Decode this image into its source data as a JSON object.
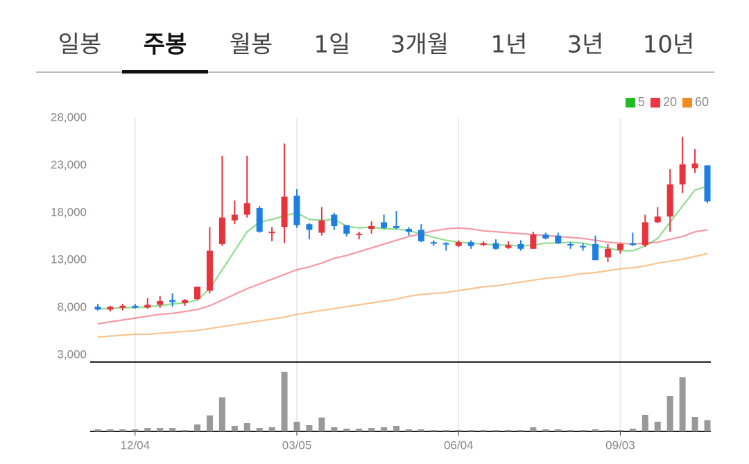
{
  "tabs": {
    "items": [
      "일봉",
      "주봉",
      "월봉",
      "1일",
      "3개월",
      "1년",
      "3년",
      "10년"
    ],
    "selected": 1
  },
  "chart_data": {
    "type": "candlestick",
    "categories": [
      null,
      null,
      null,
      "12/04",
      null,
      null,
      null,
      null,
      null,
      null,
      null,
      null,
      null,
      null,
      null,
      null,
      "03/05",
      null,
      null,
      null,
      null,
      null,
      null,
      null,
      null,
      null,
      null,
      null,
      null,
      "06/04",
      null,
      null,
      null,
      null,
      null,
      null,
      null,
      null,
      null,
      null,
      null,
      null,
      "09/03",
      null,
      null,
      null,
      null,
      null,
      null,
      null
    ],
    "open": [
      8100,
      7800,
      8000,
      8200,
      8000,
      8300,
      8800,
      8500,
      8900,
      9800,
      14700,
      17200,
      17800,
      18500,
      15900,
      16500,
      19800,
      16800,
      15900,
      17800,
      16700,
      15800,
      16300,
      17000,
      16600,
      16300,
      16200,
      14900,
      14800,
      14500,
      14900,
      14600,
      14800,
      14300,
      14700,
      14200,
      15700,
      15600,
      14700,
      14500,
      14700,
      13300,
      14100,
      14800,
      14600,
      17000,
      17600,
      21000,
      22700,
      23000
    ],
    "high": [
      8400,
      8200,
      8400,
      8400,
      9000,
      9200,
      9500,
      8900,
      10200,
      16500,
      24000,
      19300,
      24000,
      18700,
      16500,
      25300,
      20500,
      16900,
      18600,
      18000,
      16700,
      16000,
      17100,
      17800,
      18200,
      16500,
      16800,
      15100,
      14900,
      15100,
      15100,
      15000,
      15200,
      15000,
      15100,
      16000,
      15900,
      15900,
      14900,
      14800,
      15600,
      14700,
      14800,
      15900,
      17800,
      18600,
      22600,
      26000,
      24700,
      23000
    ],
    "low": [
      7700,
      7600,
      7700,
      7900,
      7900,
      8000,
      8100,
      8200,
      8800,
      9500,
      14500,
      16800,
      17500,
      15900,
      15000,
      14800,
      16400,
      15200,
      15600,
      16200,
      15500,
      15200,
      15800,
      16300,
      16300,
      15600,
      14900,
      14500,
      14000,
      14400,
      14200,
      14500,
      14100,
      14200,
      14000,
      14200,
      15200,
      14700,
      14200,
      14000,
      13000,
      12800,
      13700,
      14500,
      14400,
      16900,
      16000,
      20100,
      22200,
      19000
    ],
    "close": [
      7800,
      8100,
      8200,
      8000,
      8300,
      8700,
      8600,
      8800,
      10200,
      14000,
      17500,
      17800,
      19000,
      16000,
      16000,
      19700,
      16700,
      16200,
      17200,
      16600,
      15800,
      15800,
      16600,
      16400,
      16400,
      16000,
      15000,
      14800,
      14700,
      14900,
      14500,
      14800,
      14200,
      14600,
      14200,
      15700,
      15300,
      14800,
      14600,
      14400,
      13000,
      14200,
      14700,
      14600,
      17000,
      17600,
      21000,
      23100,
      23200,
      19200
    ],
    "up_color": "#e8323c",
    "down_color": "#1f7fe0",
    "ylim": [
      3000,
      28000
    ],
    "yticks": [
      {
        "value": 3000,
        "label": "3,000"
      },
      {
        "value": 8000,
        "label": "8,000"
      },
      {
        "value": 13000,
        "label": "13,000"
      },
      {
        "value": 18000,
        "label": "18,000"
      },
      {
        "value": 23000,
        "label": "23,000"
      },
      {
        "value": 28000,
        "label": "28,000"
      }
    ],
    "grid": "x",
    "legend": "top-right",
    "moving_averages": [
      {
        "name": "5",
        "color": "#22bb22",
        "values": [
          7900,
          7900,
          8000,
          8000,
          8100,
          8200,
          8400,
          8500,
          8800,
          10000,
          12000,
          14000,
          16000,
          17000,
          17300,
          17700,
          18000,
          17300,
          17200,
          17300,
          16600,
          16400,
          16500,
          16300,
          16300,
          16100,
          15800,
          15400,
          15100,
          14900,
          14800,
          14700,
          14600,
          14600,
          14500,
          14600,
          14800,
          14800,
          14900,
          14800,
          14500,
          14300,
          14000,
          14000,
          14500,
          15300,
          17000,
          18700,
          20400,
          20800
        ]
      },
      {
        "name": "20",
        "color": "#ee3344",
        "values": [
          6300,
          6500,
          6700,
          6900,
          7100,
          7300,
          7400,
          7600,
          7800,
          8200,
          8800,
          9400,
          10000,
          10500,
          11000,
          11500,
          12000,
          12300,
          12700,
          13200,
          13500,
          13900,
          14300,
          14700,
          15100,
          15500,
          15800,
          16100,
          16300,
          16400,
          16300,
          16100,
          16000,
          15900,
          15800,
          15700,
          15600,
          15500,
          15400,
          15300,
          15100,
          14900,
          14800,
          14700,
          14800,
          14900,
          15200,
          15500,
          16000,
          16200
        ]
      },
      {
        "name": "60",
        "color": "#f58a1f",
        "values": [
          4900,
          5000,
          5100,
          5200,
          5200,
          5300,
          5400,
          5500,
          5600,
          5800,
          6000,
          6200,
          6400,
          6600,
          6800,
          7000,
          7300,
          7500,
          7700,
          7900,
          8100,
          8300,
          8500,
          8700,
          8900,
          9200,
          9400,
          9500,
          9600,
          9800,
          10000,
          10200,
          10300,
          10500,
          10700,
          10900,
          11100,
          11200,
          11400,
          11600,
          11700,
          11900,
          12100,
          12200,
          12400,
          12700,
          12900,
          13100,
          13400,
          13700
        ]
      }
    ],
    "volume": {
      "color": "#999999",
      "ylim": [
        0,
        90
      ],
      "values": [
        3,
        3,
        3,
        3,
        5,
        5,
        5,
        2,
        10,
        23,
        49,
        8,
        12,
        5,
        6,
        86,
        14,
        9,
        20,
        6,
        4,
        4,
        5,
        6,
        8,
        3,
        3,
        2,
        2,
        2,
        2,
        2,
        2,
        2,
        2,
        6,
        3,
        3,
        2,
        2,
        3,
        2,
        2,
        4,
        24,
        14,
        51,
        78,
        21,
        16
      ]
    }
  }
}
